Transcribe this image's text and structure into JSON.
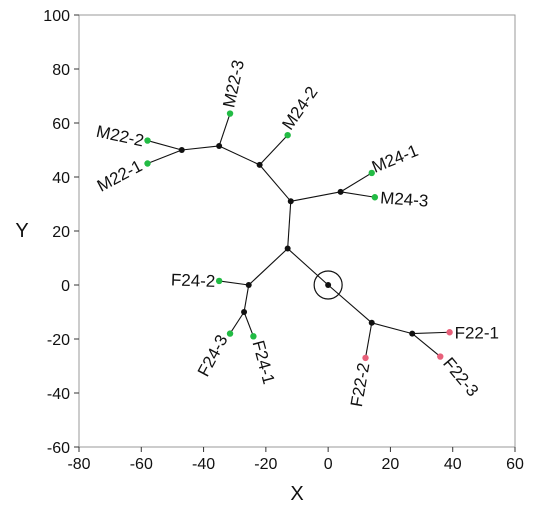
{
  "chart_data": {
    "type": "scatter",
    "title": "",
    "xlabel": "X",
    "ylabel": "Y",
    "xlim": [
      -80,
      60
    ],
    "ylim": [
      -60,
      100
    ],
    "x_ticks": [
      "-80",
      "-60",
      "-40",
      "-20",
      "0",
      "20",
      "40",
      "60"
    ],
    "y_ticks": [
      "-60",
      "-40",
      "-20",
      "0",
      "20",
      "40",
      "60",
      "80",
      "100"
    ],
    "grid": false,
    "colors": {
      "male": "#22bb44",
      "female": "#e8607a",
      "internal": "#111111"
    },
    "root": {
      "x": 0,
      "y": 0,
      "circled": true
    },
    "internal_nodes": [
      {
        "id": "n1",
        "x": -13,
        "y": 13.5
      },
      {
        "id": "n2",
        "x": -25.5,
        "y": 0
      },
      {
        "id": "n3",
        "x": -27,
        "y": -10
      },
      {
        "id": "n4",
        "x": -12,
        "y": 31
      },
      {
        "id": "n5",
        "x": 4,
        "y": 34.5
      },
      {
        "id": "n6",
        "x": -22,
        "y": 44.5
      },
      {
        "id": "n7",
        "x": -35,
        "y": 51.5
      },
      {
        "id": "n8",
        "x": -47,
        "y": 50
      },
      {
        "id": "n9",
        "x": 14,
        "y": -14
      },
      {
        "id": "n10",
        "x": 27,
        "y": -18
      }
    ],
    "leaves": [
      {
        "label": "M22-1",
        "x": -58,
        "y": 45,
        "group": "male"
      },
      {
        "label": "M22-2",
        "x": -58,
        "y": 53.5,
        "group": "male"
      },
      {
        "label": "M22-3",
        "x": -31.5,
        "y": 63.5,
        "group": "male"
      },
      {
        "label": "M24-1",
        "x": 14,
        "y": 41.5,
        "group": "male"
      },
      {
        "label": "M24-2",
        "x": -13,
        "y": 55.5,
        "group": "male"
      },
      {
        "label": "M24-3",
        "x": 15,
        "y": 32.5,
        "group": "male"
      },
      {
        "label": "F24-1",
        "x": -24,
        "y": -19,
        "group": "male"
      },
      {
        "label": "F24-2",
        "x": -35,
        "y": 1.5,
        "group": "male"
      },
      {
        "label": "F24-3",
        "x": -31.5,
        "y": -18,
        "group": "male"
      },
      {
        "label": "F22-1",
        "x": 39,
        "y": -17.5,
        "group": "female"
      },
      {
        "label": "F22-2",
        "x": 12,
        "y": -27,
        "group": "female"
      },
      {
        "label": "F22-3",
        "x": 36,
        "y": -26.5,
        "group": "female"
      }
    ],
    "edges": [
      [
        "root",
        "n1"
      ],
      [
        "n1",
        "n2"
      ],
      [
        "n2",
        "F24-2"
      ],
      [
        "n2",
        "n3"
      ],
      [
        "n3",
        "F24-3"
      ],
      [
        "n3",
        "F24-1"
      ],
      [
        "n1",
        "n4"
      ],
      [
        "n4",
        "n5"
      ],
      [
        "n5",
        "M24-1"
      ],
      [
        "n5",
        "M24-3"
      ],
      [
        "n4",
        "n6"
      ],
      [
        "n6",
        "M24-2"
      ],
      [
        "n6",
        "n7"
      ],
      [
        "n7",
        "M22-3"
      ],
      [
        "n7",
        "n8"
      ],
      [
        "n8",
        "M22-2"
      ],
      [
        "n8",
        "M22-1"
      ],
      [
        "root",
        "n9"
      ],
      [
        "n9",
        "F22-2"
      ],
      [
        "n9",
        "n10"
      ],
      [
        "n10",
        "F22-1"
      ],
      [
        "n10",
        "F22-3"
      ]
    ]
  }
}
